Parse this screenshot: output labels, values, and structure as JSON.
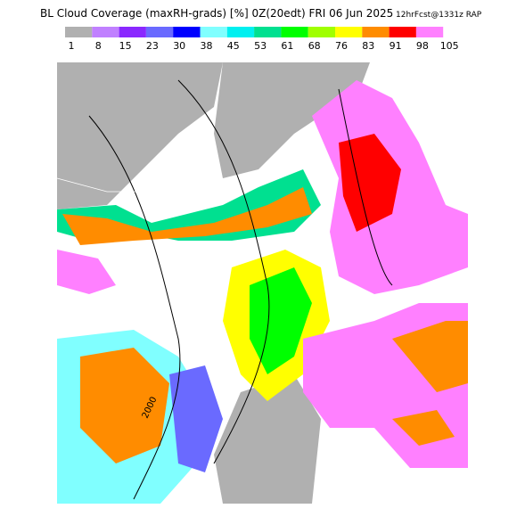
{
  "header": {
    "title": "BL Cloud Coverage (maxRH-grads) [%] 0Z(20edt) FRI 06 Jun 2025",
    "subtitle": "12hrFcst@1331z RAP"
  },
  "colorbar": {
    "colors": [
      "#b0b0b0",
      "#c080ff",
      "#8a28ff",
      "#6a6aff",
      "#0000ff",
      "#80ffff",
      "#00f0f0",
      "#00e090",
      "#00ff00",
      "#a0ff00",
      "#ffff00",
      "#ff8c00",
      "#ff0000",
      "#ff80ff"
    ],
    "ticks": [
      1,
      8,
      15,
      23,
      30,
      38,
      45,
      53,
      61,
      68,
      76,
      83,
      91,
      98,
      105
    ]
  },
  "map": {
    "contour_label": "2000"
  }
}
